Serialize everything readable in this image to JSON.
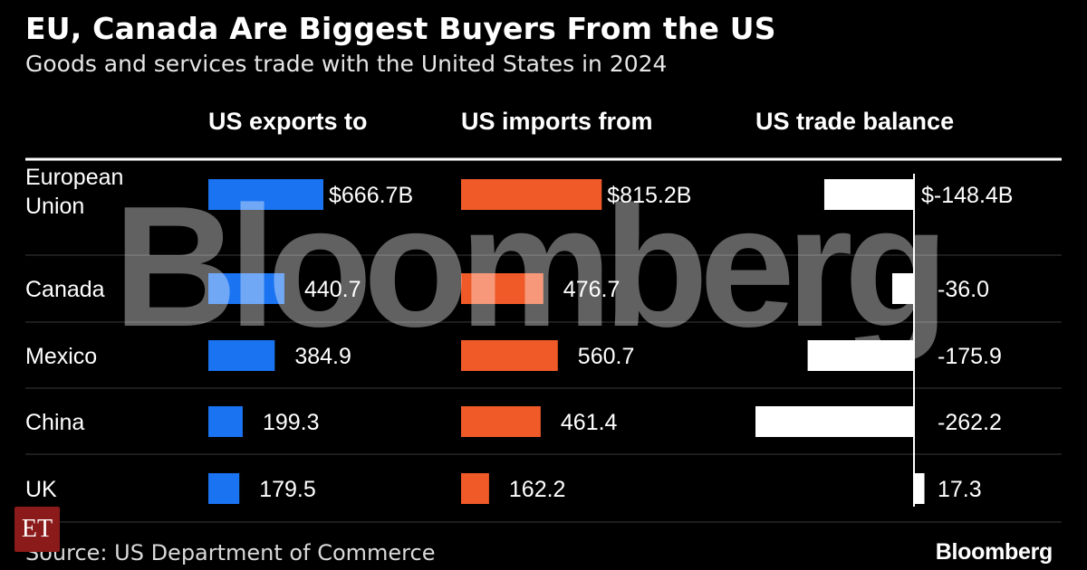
{
  "title": "EU, Canada Are Biggest Buyers From the US",
  "subtitle": "Goods and services trade with the United States in 2024",
  "source": "Source: US Department of Commerce",
  "brand": "Bloomberg",
  "watermark": "Bloomberg",
  "corner_logo": "ET",
  "colors": {
    "background": "#000000",
    "exports": "#1a73f0",
    "imports": "#f05a28",
    "balance": "#ffffff",
    "divider": "#3a3a3a"
  },
  "chart_data": {
    "type": "bar",
    "categories": [
      "European Union",
      "Canada",
      "Mexico",
      "China",
      "UK"
    ],
    "category_label_lines": [
      [
        "European",
        "Union"
      ],
      [
        "Canada"
      ],
      [
        "Mexico"
      ],
      [
        "China"
      ],
      [
        "UK"
      ]
    ],
    "units": "billions of US dollars",
    "series": [
      {
        "name": "US exports to",
        "values": [
          666.7,
          440.7,
          384.9,
          199.3,
          179.5
        ],
        "labels": [
          "$666.7B",
          "440.7",
          "384.9",
          "199.3",
          "179.5"
        ]
      },
      {
        "name": "US imports from",
        "values": [
          815.2,
          476.7,
          560.7,
          461.4,
          162.2
        ],
        "labels": [
          "$815.2B",
          "476.7",
          "560.7",
          "461.4",
          "162.2"
        ]
      },
      {
        "name": "US trade balance",
        "values": [
          -148.4,
          -36.0,
          -175.9,
          -262.2,
          17.3
        ],
        "labels": [
          "$-148.4B",
          "-36.0",
          "-175.9",
          "-262.2",
          "17.3"
        ]
      }
    ]
  }
}
